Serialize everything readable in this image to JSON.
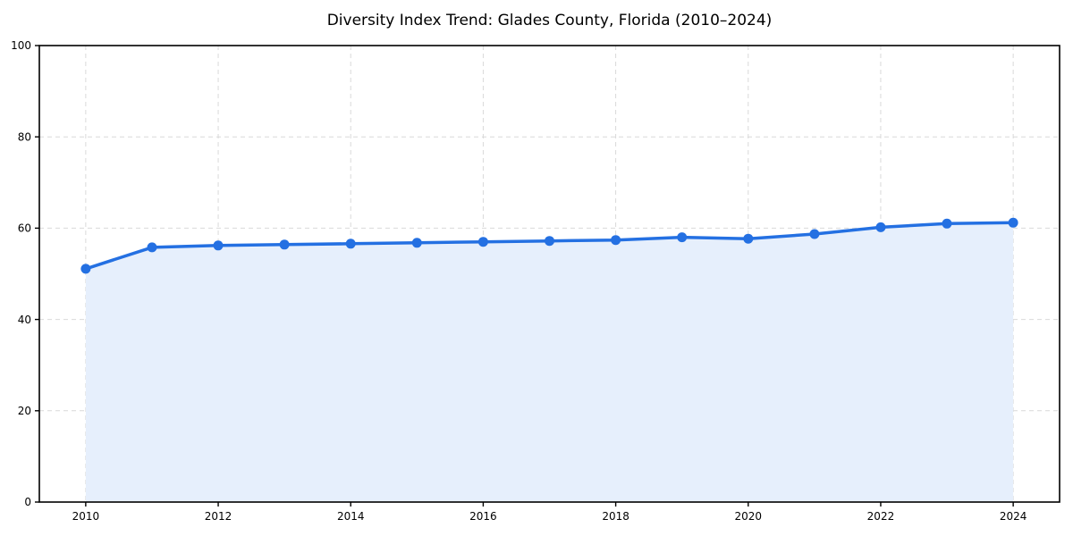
{
  "chart_data": {
    "type": "area",
    "title": "Diversity Index Trend: Glades County, Florida (2010–2024)",
    "x": [
      2010,
      2011,
      2012,
      2013,
      2014,
      2015,
      2016,
      2017,
      2018,
      2019,
      2020,
      2021,
      2022,
      2023,
      2024
    ],
    "series": [
      {
        "name": "Diversity Index",
        "values": [
          51.1,
          55.8,
          56.2,
          56.4,
          56.6,
          56.8,
          57.0,
          57.2,
          57.4,
          58.0,
          57.7,
          58.7,
          60.2,
          61.0,
          61.2
        ]
      }
    ],
    "xlabel": "",
    "ylabel": "",
    "xlim": [
      2009.3,
      2024.7
    ],
    "ylim": [
      0,
      100
    ],
    "xticks": [
      2010,
      2012,
      2014,
      2016,
      2018,
      2020,
      2022,
      2024
    ],
    "yticks": [
      0,
      20,
      40,
      60,
      80,
      100
    ],
    "grid": true,
    "legend": false,
    "colors": {
      "line": "#2470e2",
      "marker": "#2470e2",
      "fill": "#e6effc",
      "grid": "#d9d9d9",
      "axis": "#000000",
      "background": "#ffffff"
    }
  }
}
